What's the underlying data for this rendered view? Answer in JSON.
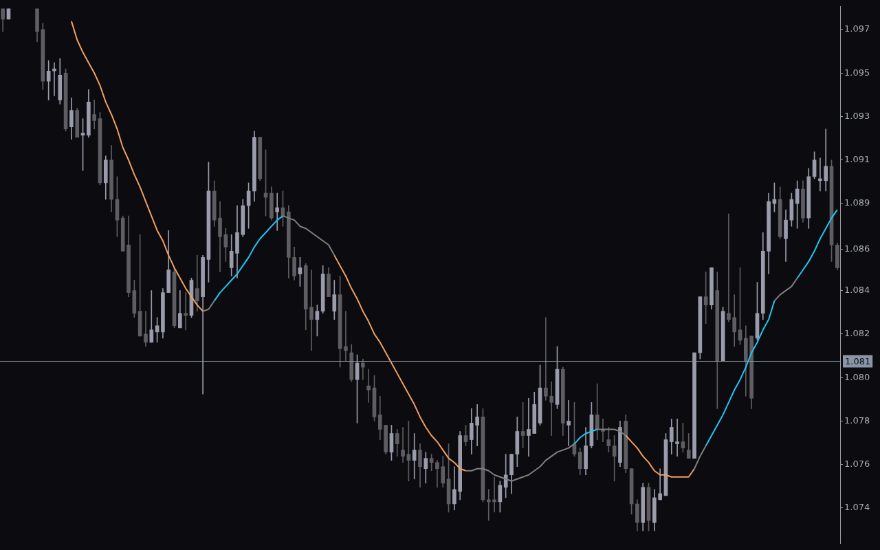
{
  "chart_data": {
    "type": "candlestick",
    "categories": [
      null,
      null,
      null,
      null,
      null,
      null,
      null,
      null,
      null,
      null,
      null,
      null,
      null,
      null,
      null,
      null,
      null,
      null,
      null,
      null,
      null,
      null,
      null,
      null,
      null,
      null,
      null,
      null,
      null,
      null,
      null,
      null,
      null,
      null,
      null,
      null,
      null,
      null,
      null,
      null,
      null,
      null,
      null,
      null,
      null,
      null,
      null,
      null,
      null,
      null,
      null,
      null,
      null,
      null,
      null,
      null,
      null,
      null,
      null,
      null,
      null,
      null,
      null,
      null,
      null,
      null,
      null,
      null,
      null,
      null,
      null,
      null,
      null,
      null,
      null,
      null,
      null,
      null,
      null,
      null,
      null,
      null,
      null,
      null,
      null,
      null,
      null,
      null,
      null,
      null,
      null,
      null,
      null,
      null,
      null,
      null,
      null,
      null,
      null,
      null,
      null,
      null,
      null,
      null,
      null,
      null,
      null,
      null,
      null,
      null,
      null,
      null,
      null,
      null,
      null,
      null,
      null,
      null,
      null,
      null,
      null,
      null,
      null,
      null,
      null,
      null,
      null,
      null,
      null,
      null,
      null,
      null,
      null,
      null,
      null,
      null,
      null,
      null,
      null,
      null,
      null,
      null,
      null,
      null,
      null,
      null,
      null
    ],
    "ylim": [
      1.0722,
      1.0981
    ],
    "yticks": [
      {
        "value": 1.097,
        "label": "1.097"
      },
      {
        "value": 1.0949,
        "label": "1.095"
      },
      {
        "value": 1.0928,
        "label": "1.093"
      },
      {
        "value": 1.0907,
        "label": "1.091"
      },
      {
        "value": 1.0886,
        "label": "1.089"
      },
      {
        "value": 1.0864,
        "label": "1.086"
      },
      {
        "value": 1.0844,
        "label": "1.084"
      },
      {
        "value": 1.0823,
        "label": "1.082"
      },
      {
        "value": 1.0802,
        "label": "1.080"
      },
      {
        "value": 1.0781,
        "label": "1.078"
      },
      {
        "value": 1.076,
        "label": "1.076"
      },
      {
        "value": 1.0739,
        "label": "1.074"
      }
    ],
    "tick_labels": "y",
    "colors": [
      "#5e5e62",
      "#9a9cab",
      null,
      null,
      null,
      null,
      "#5e5e62",
      "#5e5e62",
      "#9a9cab",
      "#9a9cab",
      "#9a9cab",
      "#5e5e62",
      "#9a9cab",
      "#5e5e62",
      "#9a9cab",
      "#9a9cab",
      "#5e5e62",
      "#5e5e62",
      "#9a9cab",
      "#5e5e62",
      "#5e5e62",
      "#5e5e62",
      "#5e5e62",
      "#5e5e62",
      "#5e5e62",
      "#5e5e62",
      "#9a9cab",
      "#9a9cab",
      "#9a9cab",
      "#9a9cab",
      "#5e5e62",
      "#9a9cab",
      "#5e5e62",
      "#9a9cab",
      "#5e5e62",
      "#9a9cab",
      "#9a9cab",
      "#5e5e62",
      "#5e5e62",
      "#5e5e62",
      "#9a9cab",
      "#9a9cab",
      "#9a9cab",
      "#9a9cab",
      "#9a9cab",
      "#5e5e62",
      "#5e5e62",
      "#5e5e62",
      "#9a9cab",
      "#5e5e62",
      "#5e5e62",
      "#5e5e62",
      "#9a9cab",
      "#5e5e62",
      "#5e5e62",
      "#9a9cab",
      "#9a9cab",
      "#5e5e62",
      "#9a9cab",
      "#5e5e62",
      "#5e5e62",
      "#5e5e62",
      "#9a9cab",
      "#5e5e62",
      "#5e5e62",
      "#5e5e62",
      "#5e5e62",
      "#5e5e62",
      "#9a9cab",
      "#5e5e62",
      "#5e5e62",
      "#5e5e62",
      "#9a9cab",
      "#5e5e62",
      "#9a9cab",
      "#5e5e62",
      "#5e5e62",
      "#5e5e62",
      "#5e5e62",
      "#9a9cab",
      "#9a9cab",
      "#5e5e62",
      "#9a9cab",
      "#9a9cab",
      "#5e5e62",
      "#5e5e62",
      "#5e5e62",
      "#9a9cab",
      "#9a9cab",
      "#9a9cab",
      "#9a9cab",
      "#5e5e62",
      "#9a9cab",
      "#9a9cab",
      "#9a9cab",
      "#5e5e62",
      "#5e5e62",
      "#9a9cab",
      "#5e5e62",
      "#9a9cab",
      "#5e5e62",
      "#5e5e62",
      "#9a9cab",
      "#9a9cab",
      "#5e5e62",
      "#5e5e62",
      "#5e5e62",
      "#5e5e62",
      "#9a9cab",
      "#5e5e62",
      "#5e5e62",
      "#5e5e62",
      "#9a9cab",
      "#5e5e62",
      "#9a9cab",
      "#9a9cab",
      "#9a9cab",
      "#9a9cab",
      "#9a9cab",
      "#5e5e62",
      "#5e5e62",
      "#9a9cab",
      "#9a9cab",
      "#5e5e62",
      "#9a9cab",
      "#5e5e62",
      "#9a9cab",
      "#5e5e62",
      "#5e5e62",
      "#5e5e62",
      "#5e5e62",
      "#5e5e62",
      "#9a9cab",
      "#9a9cab",
      "#9a9cab",
      "#9a9cab",
      "#5e5e62",
      "#9a9cab",
      "#9a9cab",
      "#9a9cab",
      "#5e5e62",
      "#9a9cab",
      "#9a9cab",
      "#9a9cab",
      "#9a9cab",
      "#5e5e62",
      "#5e5e62"
    ],
    "ohlc": [
      [
        1.098,
        1.098,
        1.0969,
        1.0975
      ],
      [
        1.0975,
        1.098,
        1.0975,
        1.098
      ],
      null,
      null,
      null,
      null,
      [
        1.098,
        1.098,
        1.0964,
        1.0969
      ],
      [
        1.097,
        1.0973,
        1.0941,
        1.0945
      ],
      [
        1.0945,
        1.0955,
        1.0936,
        1.095
      ],
      [
        1.095,
        1.0954,
        1.0938,
        1.0951
      ],
      [
        1.0936,
        1.0956,
        1.0934,
        1.0948
      ],
      [
        1.0949,
        1.0951,
        1.0921,
        1.0922
      ],
      [
        1.0923,
        1.0937,
        1.0917,
        1.0931
      ],
      [
        1.0931,
        1.0932,
        1.0918,
        1.0918
      ],
      [
        1.0919,
        1.0927,
        1.0902,
        1.092
      ],
      [
        1.0919,
        1.0941,
        1.0918,
        1.0935
      ],
      [
        1.0929,
        1.0936,
        1.0922,
        1.0926
      ],
      [
        1.0927,
        1.093,
        1.0895,
        1.0896
      ],
      [
        1.0896,
        1.0909,
        1.0888,
        1.0907
      ],
      [
        1.0907,
        1.0914,
        1.0882,
        1.0888
      ],
      [
        1.0888,
        1.0899,
        1.087,
        1.0878
      ],
      [
        1.0879,
        1.088,
        1.0863,
        1.0863
      ],
      [
        1.0866,
        1.088,
        1.0841,
        1.0843
      ],
      [
        1.0844,
        1.0849,
        1.0831,
        1.0833
      ],
      [
        1.0834,
        1.0871,
        1.0822,
        1.0822
      ],
      [
        1.0823,
        1.0834,
        1.0817,
        1.0819
      ],
      [
        1.0819,
        1.0844,
        1.0819,
        1.0825
      ],
      [
        1.0824,
        1.0831,
        1.0819,
        1.0827
      ],
      [
        1.0824,
        1.0845,
        1.0821,
        1.0843
      ],
      [
        1.0843,
        1.0873,
        1.0843,
        1.0854
      ],
      [
        1.0853,
        1.0855,
        1.0826,
        1.0827
      ],
      [
        1.0826,
        1.0844,
        1.0826,
        1.0833
      ],
      [
        1.0833,
        1.0843,
        1.0825,
        1.0832
      ],
      [
        1.0832,
        1.085,
        1.0831,
        1.0849
      ],
      [
        1.0845,
        1.0861,
        1.0834,
        1.0839
      ],
      [
        1.0841,
        1.0861,
        1.0794,
        1.086
      ],
      [
        1.0859,
        1.0906,
        1.0848,
        1.0892
      ],
      [
        1.0892,
        1.0897,
        1.0875,
        1.0878
      ],
      [
        1.0879,
        1.0887,
        1.0853,
        1.087
      ],
      [
        1.0871,
        1.0874,
        1.0858,
        1.0865
      ],
      [
        1.0855,
        1.0871,
        1.0851,
        1.0863
      ],
      [
        1.0862,
        1.0885,
        1.085,
        1.0872
      ],
      [
        1.0871,
        1.0888,
        1.087,
        1.0885
      ],
      [
        1.0885,
        1.0896,
        1.0874,
        1.0892
      ],
      [
        1.0892,
        1.0921,
        1.0887,
        1.0918
      ],
      [
        1.0918,
        1.0918,
        1.0897,
        1.0898
      ],
      [
        1.0891,
        1.0912,
        1.088,
        1.0889
      ],
      [
        1.0891,
        1.0894,
        1.0878,
        1.0879
      ],
      [
        1.0882,
        1.0891,
        1.0873,
        1.0884
      ],
      [
        1.0884,
        1.0892,
        1.0875,
        1.088
      ],
      [
        1.0882,
        1.0885,
        1.085,
        1.086
      ],
      [
        1.086,
        1.0865,
        1.0849,
        1.0851
      ],
      [
        1.0852,
        1.086,
        1.0846,
        1.0855
      ],
      [
        1.0856,
        1.0857,
        1.0825,
        1.0835
      ],
      [
        1.0836,
        1.0854,
        1.0815,
        1.083
      ],
      [
        1.083,
        1.0837,
        1.0822,
        1.0834
      ],
      [
        1.0834,
        1.0856,
        1.0833,
        1.0852
      ],
      [
        1.0852,
        1.0855,
        1.0841,
        1.0841
      ],
      [
        1.0834,
        1.0849,
        1.083,
        1.0842
      ],
      [
        1.0842,
        1.0851,
        1.0807,
        1.0816
      ],
      [
        1.0817,
        1.0834,
        1.081,
        1.0815
      ],
      [
        1.0814,
        1.0818,
        1.08,
        1.0801
      ],
      [
        1.0801,
        1.0813,
        1.078,
        1.0809
      ],
      [
        1.0809,
        1.0811,
        1.0801,
        1.0807
      ],
      [
        1.0798,
        1.0806,
        1.079,
        1.0796
      ],
      [
        1.0797,
        1.0803,
        1.0781,
        1.0783
      ],
      [
        1.0784,
        1.0793,
        1.0772,
        1.0777
      ],
      [
        1.0779,
        1.0779,
        1.0765,
        1.0766
      ],
      [
        1.0766,
        1.0779,
        1.0762,
        1.0775
      ],
      [
        1.0775,
        1.0777,
        1.0764,
        1.077
      ],
      [
        1.0767,
        1.0778,
        1.0761,
        1.0764
      ],
      [
        1.0765,
        1.0781,
        1.0752,
        1.0762
      ],
      [
        1.0762,
        1.0775,
        1.0753,
        1.0767
      ],
      [
        1.0767,
        1.077,
        1.0749,
        1.0759
      ],
      [
        1.0758,
        1.0766,
        1.0751,
        1.0763
      ],
      [
        1.0763,
        1.0765,
        1.0757,
        1.0761
      ],
      [
        1.0761,
        1.0762,
        1.0749,
        1.0758
      ],
      [
        1.0759,
        1.0764,
        1.0749,
        1.0751
      ],
      [
        1.0753,
        1.077,
        1.0737,
        1.0741
      ],
      [
        1.0741,
        1.0759,
        1.0738,
        1.0748
      ],
      [
        1.0747,
        1.0776,
        1.0743,
        1.0774
      ],
      [
        1.0774,
        1.0779,
        1.0769,
        1.0771
      ],
      [
        1.0772,
        1.0787,
        1.0765,
        1.078
      ],
      [
        1.0779,
        1.0789,
        1.0769,
        1.0783
      ],
      [
        1.0783,
        1.0787,
        1.0742,
        1.0743
      ],
      [
        1.0743,
        1.0748,
        1.0733,
        1.0742
      ],
      [
        1.0743,
        1.0754,
        1.0737,
        1.0742
      ],
      [
        1.0742,
        1.0752,
        1.0737,
        1.075
      ],
      [
        1.0749,
        1.0765,
        1.0744,
        1.0755
      ],
      [
        1.0755,
        1.0765,
        1.0746,
        1.0765
      ],
      [
        1.0765,
        1.0783,
        1.0759,
        1.0776
      ],
      [
        1.0776,
        1.079,
        1.0768,
        1.0774
      ],
      [
        1.0774,
        1.0792,
        1.0764,
        1.0777
      ],
      [
        1.0775,
        1.0795,
        1.0775,
        1.0789
      ],
      [
        1.078,
        1.0808,
        1.0779,
        1.0797
      ],
      [
        1.0797,
        1.0831,
        1.0791,
        1.0793
      ],
      [
        1.0793,
        1.08,
        1.0774,
        1.079
      ],
      [
        1.0789,
        1.0817,
        1.0787,
        1.0806
      ],
      [
        1.0806,
        1.0807,
        1.0774,
        1.078
      ],
      [
        1.0779,
        1.0791,
        1.0769,
        1.0781
      ],
      [
        1.077,
        1.079,
        1.0764,
        1.0765
      ],
      [
        1.0766,
        1.0768,
        1.0755,
        1.0758
      ],
      [
        1.0758,
        1.0778,
        1.0755,
        1.0769
      ],
      [
        1.0769,
        1.079,
        1.0768,
        1.0784
      ],
      [
        1.0784,
        1.0799,
        1.0772,
        1.0777
      ],
      [
        1.0777,
        1.0782,
        1.0771,
        1.0776
      ],
      [
        1.0772,
        1.0778,
        1.0766,
        1.0769
      ],
      [
        1.0769,
        1.0774,
        1.0752,
        1.0764
      ],
      [
        1.0761,
        1.0781,
        1.0759,
        1.0778
      ],
      [
        1.0781,
        1.0784,
        1.0756,
        1.0758
      ],
      [
        1.0758,
        1.0758,
        1.0736,
        1.0741
      ],
      [
        1.0741,
        1.0743,
        1.0728,
        1.0732
      ],
      [
        1.0732,
        1.0751,
        1.0728,
        1.0749
      ],
      [
        1.0749,
        1.0751,
        1.0728,
        1.0733
      ],
      [
        1.0732,
        1.0748,
        1.0728,
        1.0744
      ],
      [
        1.0743,
        1.0758,
        1.0743,
        1.0746
      ],
      [
        1.0745,
        1.0775,
        1.0745,
        1.0772
      ],
      [
        1.0771,
        1.0782,
        1.0765,
        1.0778
      ],
      [
        1.077,
        1.0782,
        1.0764,
        1.0771
      ],
      [
        1.0771,
        1.078,
        1.0766,
        1.0768
      ],
      [
        1.0767,
        1.0775,
        1.0763,
        1.0763
      ],
      [
        1.0763,
        1.0814,
        1.0763,
        1.0814
      ],
      [
        1.0814,
        1.0841,
        1.0811,
        1.0841
      ],
      [
        1.0841,
        1.0853,
        1.0828,
        1.0837
      ],
      [
        1.0837,
        1.0855,
        1.0835,
        1.0855
      ],
      [
        1.0844,
        1.0853,
        1.0787,
        1.081
      ],
      [
        1.081,
        1.0836,
        1.081,
        1.0834
      ],
      [
        1.0833,
        1.0881,
        1.0829,
        1.083
      ],
      [
        1.0831,
        1.0842,
        1.0817,
        1.0824
      ],
      [
        1.0825,
        1.0855,
        1.0818,
        1.082
      ],
      [
        1.0821,
        1.0827,
        1.0793,
        1.081
      ],
      [
        1.0822,
        1.0822,
        1.0787,
        1.0792
      ],
      [
        1.0821,
        1.0848,
        1.082,
        1.0833
      ],
      [
        1.0833,
        1.0872,
        1.083,
        1.0863
      ],
      [
        1.0863,
        1.0891,
        1.0852,
        1.0887
      ],
      [
        1.0886,
        1.0896,
        1.0882,
        1.0888
      ],
      [
        1.0888,
        1.0894,
        1.0869,
        1.087
      ],
      [
        1.0869,
        1.0883,
        1.0858,
        1.0878
      ],
      [
        1.0878,
        1.0891,
        1.0875,
        1.0888
      ],
      [
        1.0886,
        1.0897,
        1.0874,
        1.0893
      ],
      [
        1.0893,
        1.0897,
        1.0877,
        1.0879
      ],
      [
        1.0879,
        1.0903,
        1.0874,
        1.0899
      ],
      [
        1.0899,
        1.0911,
        1.0898,
        1.0907
      ],
      [
        1.0897,
        1.0908,
        1.0892,
        1.0898
      ],
      [
        1.0897,
        1.0922,
        1.0892,
        1.0904
      ],
      [
        1.0904,
        1.0907,
        1.0858,
        1.0866
      ],
      [
        1.0866,
        1.0867,
        1.0854,
        1.0855
      ]
    ],
    "series": [
      {
        "type": "line",
        "color": "#f0a060",
        "values": [
          null,
          null,
          null,
          null,
          null,
          null,
          null,
          null,
          null,
          null,
          null,
          null,
          1.0974,
          1.0965,
          1.0959,
          1.0954,
          1.0949,
          1.0943,
          1.0935,
          1.0929,
          1.0922,
          1.0913,
          1.0907,
          1.09,
          1.0894,
          1.0887,
          1.088,
          1.0873,
          1.0868,
          1.0861,
          1.0855,
          1.085,
          1.0845,
          1.0841,
          1.0837,
          1.0834,
          null,
          null,
          null,
          null,
          null,
          null,
          null,
          null,
          null,
          null,
          null,
          null,
          null,
          null,
          null,
          null,
          null,
          null,
          null,
          null,
          null,
          null,
          1.0861,
          1.0856,
          1.0851,
          1.0845,
          1.084,
          1.0834,
          1.0829,
          1.0823,
          1.0819,
          1.0814,
          1.0809,
          1.0804,
          1.0799,
          1.0794,
          1.0789,
          1.0783,
          1.0778,
          1.0774,
          1.0771,
          1.0767,
          1.0763,
          1.0761,
          1.0758,
          1.0757,
          null,
          null,
          null,
          null,
          null,
          null,
          null,
          null,
          null,
          null,
          null,
          null,
          null,
          null,
          null,
          null,
          null,
          null,
          null,
          null,
          null,
          null,
          null,
          null,
          null,
          null,
          null,
          1.0774,
          1.0771,
          1.0768,
          1.0764,
          1.0761,
          1.0757,
          1.0755,
          1.0755,
          1.0754,
          1.0754,
          1.0754,
          1.0754,
          1.0758,
          null,
          null,
          null,
          null,
          null,
          null,
          null,
          null,
          null,
          null,
          null,
          null,
          null,
          null,
          null,
          null,
          null,
          null,
          null,
          null,
          null,
          null,
          null,
          null,
          null
        ]
      },
      {
        "type": "line",
        "color": "#808080",
        "values": [
          null,
          null,
          null,
          null,
          null,
          null,
          null,
          null,
          null,
          null,
          null,
          null,
          null,
          null,
          null,
          null,
          null,
          null,
          null,
          null,
          null,
          null,
          null,
          null,
          null,
          null,
          null,
          null,
          null,
          null,
          null,
          null,
          null,
          null,
          null,
          1.0834,
          1.0835,
          1.0839,
          null,
          null,
          null,
          null,
          null,
          null,
          null,
          null,
          null,
          null,
          null,
          1.088,
          1.0879,
          1.0878,
          1.0875,
          1.0874,
          1.0872,
          1.087,
          1.0868,
          1.0866,
          1.0861,
          null,
          null,
          null,
          null,
          null,
          null,
          null,
          null,
          null,
          null,
          null,
          null,
          null,
          null,
          null,
          null,
          null,
          null,
          null,
          null,
          null,
          null,
          1.0757,
          1.0757,
          1.0758,
          1.0758,
          1.0757,
          1.0755,
          1.0754,
          1.0753,
          1.0752,
          1.0753,
          1.0754,
          1.0755,
          1.0757,
          1.0759,
          1.0762,
          1.0764,
          1.0766,
          1.0767,
          1.0768,
          1.077,
          null,
          null,
          null,
          1.0777,
          1.0777,
          1.0777,
          1.0777,
          1.0776,
          1.0774,
          null,
          null,
          null,
          null,
          null,
          null,
          null,
          null,
          null,
          null,
          null,
          1.0758,
          1.0764,
          1.0769,
          null,
          null,
          null,
          null,
          null,
          null,
          null,
          null,
          null,
          null,
          null,
          1.0839,
          1.0842,
          1.0844,
          1.0846,
          1.085,
          null,
          null,
          null,
          null,
          null,
          null,
          null
        ]
      },
      {
        "type": "line",
        "color": "#1ec8f5",
        "values": [
          null,
          null,
          null,
          null,
          null,
          null,
          null,
          null,
          null,
          null,
          null,
          null,
          null,
          null,
          null,
          null,
          null,
          null,
          null,
          null,
          null,
          null,
          null,
          null,
          null,
          null,
          null,
          null,
          null,
          null,
          null,
          null,
          null,
          null,
          null,
          null,
          null,
          1.0839,
          1.0843,
          1.0846,
          1.0849,
          1.0852,
          1.0856,
          1.086,
          1.0865,
          1.0869,
          1.0872,
          1.0875,
          1.0878,
          1.088,
          null,
          null,
          null,
          null,
          null,
          null,
          null,
          null,
          null,
          null,
          null,
          null,
          null,
          null,
          null,
          null,
          null,
          null,
          null,
          null,
          null,
          null,
          null,
          null,
          null,
          null,
          null,
          null,
          null,
          null,
          null,
          null,
          null,
          null,
          null,
          null,
          null,
          null,
          null,
          null,
          null,
          null,
          null,
          null,
          null,
          null,
          null,
          null,
          null,
          null,
          1.077,
          1.0773,
          1.0775,
          1.0776,
          1.0777,
          null,
          null,
          null,
          null,
          null,
          null,
          null,
          null,
          null,
          null,
          null,
          null,
          null,
          null,
          null,
          null,
          null,
          null,
          1.0769,
          1.0774,
          1.0779,
          1.0784,
          1.079,
          1.0796,
          1.0801,
          1.0807,
          1.0814,
          1.0819,
          1.0825,
          1.083,
          1.0839,
          null,
          null,
          null,
          1.085,
          1.0854,
          1.0858,
          1.0863,
          1.0869,
          1.0874,
          1.0879,
          1.0883
        ]
      }
    ],
    "ref_lines": [
      {
        "axis": "y",
        "value": 1.081,
        "label": "1.081",
        "color": "#8a96a6"
      }
    ]
  }
}
